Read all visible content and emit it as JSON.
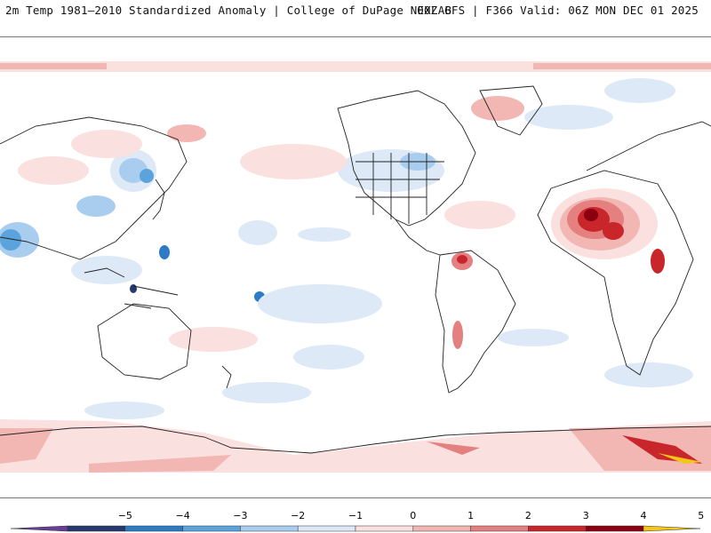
{
  "header": {
    "left_title": "2m Temp 1981–2010 Standardized Anomaly | College of DuPage NEXLAB",
    "right_title": "00Z GFS | F366 Valid: 06Z MON DEC 01 2025"
  },
  "colorbar": {
    "tick_labels": [
      "−5",
      "−4",
      "−3",
      "−2",
      "−1",
      "0",
      "1",
      "2",
      "3",
      "4",
      "5"
    ],
    "bins": [
      {
        "color": "#6a3d9a"
      },
      {
        "color": "#26396f"
      },
      {
        "color": "#2b7cc4"
      },
      {
        "color": "#5aa3dc"
      },
      {
        "color": "#a9cdee"
      },
      {
        "color": "#dde9f6"
      },
      {
        "color": "#fbe0e0"
      },
      {
        "color": "#f2b6b3"
      },
      {
        "color": "#e48080"
      },
      {
        "color": "#c9262c"
      },
      {
        "color": "#8b0010"
      },
      {
        "color": "#f5c518"
      }
    ]
  }
}
